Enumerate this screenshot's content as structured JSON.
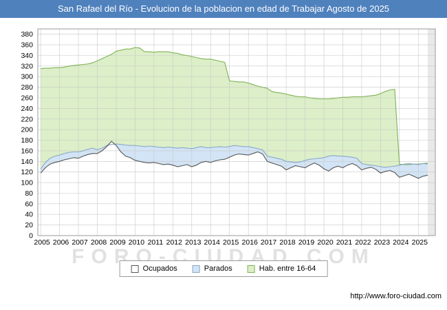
{
  "title_bar": {
    "title": "San Rafael del Río - Evolucion de la poblacion en edad de Trabajar Agosto de 2025",
    "bg": "#4f81bd"
  },
  "watermark": {
    "text": "FORO-CIUDAD.COM"
  },
  "footer": {
    "url": "http://www.foro-ciudad.com"
  },
  "chart_data": {
    "type": "area",
    "title": "San Rafael del Río - Evolucion de la poblacion en edad de Trabajar Agosto de 2025",
    "xlabel": "",
    "ylabel": "",
    "grid": true,
    "legend_position": "bottom",
    "x_start": 2005,
    "x_step": 0.25,
    "x_end": 2025.5,
    "xticks": [
      2005,
      2006,
      2007,
      2008,
      2009,
      2010,
      2011,
      2012,
      2013,
      2014,
      2015,
      2016,
      2017,
      2018,
      2019,
      2020,
      2021,
      2022,
      2023,
      2024,
      2025
    ],
    "ylim": [
      0,
      390
    ],
    "ytick_step": 20,
    "ytick_max": 380,
    "series": [
      {
        "name": "Hab. entre 16-64",
        "fill": "#dcefc8",
        "stroke": "#7fb254",
        "values": [
          315,
          316,
          316,
          317,
          317,
          318,
          320,
          321,
          322,
          323,
          324,
          326,
          330,
          334,
          338,
          342,
          348,
          350,
          352,
          352,
          355,
          354,
          347,
          347,
          346,
          347,
          347,
          347,
          345,
          344,
          341,
          340,
          338,
          336,
          334,
          333,
          333,
          331,
          329,
          327,
          292,
          291,
          290,
          290,
          288,
          285,
          282,
          280,
          278,
          272,
          270,
          269,
          267,
          265,
          263,
          262,
          262,
          260,
          259,
          258,
          258,
          258,
          259,
          260,
          261,
          261,
          262,
          262,
          262,
          263,
          264,
          265,
          268,
          272,
          275,
          276,
          135,
          134,
          134,
          135,
          135,
          136,
          137
        ]
      },
      {
        "name": "Parados",
        "fill": "#d2e4f5",
        "stroke": "#8aa8c8",
        "values": [
          125,
          138,
          146,
          150,
          152,
          155,
          157,
          158,
          158,
          160,
          163,
          165,
          162,
          165,
          170,
          172,
          173,
          172,
          171,
          170,
          170,
          169,
          168,
          169,
          168,
          167,
          166,
          167,
          166,
          165,
          166,
          165,
          164,
          166,
          168,
          166,
          166,
          167,
          168,
          167,
          168,
          170,
          169,
          168,
          168,
          166,
          164,
          162,
          150,
          148,
          146,
          144,
          140,
          139,
          138,
          139,
          142,
          144,
          145,
          146,
          147,
          150,
          151,
          150,
          150,
          149,
          148,
          146,
          136,
          134,
          133,
          132,
          130,
          129,
          130,
          131,
          133,
          135,
          136,
          135,
          134,
          136,
          135
        ]
      },
      {
        "name": "Ocupados",
        "fill": "#ffffff",
        "stroke": "#555555",
        "values": [
          118,
          128,
          135,
          138,
          140,
          143,
          145,
          147,
          146,
          150,
          153,
          155,
          155,
          160,
          168,
          178,
          170,
          158,
          150,
          147,
          142,
          140,
          138,
          137,
          138,
          136,
          134,
          135,
          133,
          130,
          132,
          134,
          130,
          133,
          138,
          140,
          138,
          141,
          143,
          144,
          148,
          152,
          154,
          153,
          152,
          155,
          158,
          154,
          140,
          137,
          134,
          131,
          124,
          128,
          132,
          130,
          128,
          133,
          137,
          133,
          126,
          122,
          128,
          131,
          128,
          133,
          136,
          132,
          124,
          127,
          129,
          125,
          118,
          121,
          123,
          119,
          110,
          113,
          116,
          112,
          108,
          112,
          114
        ]
      }
    ]
  }
}
